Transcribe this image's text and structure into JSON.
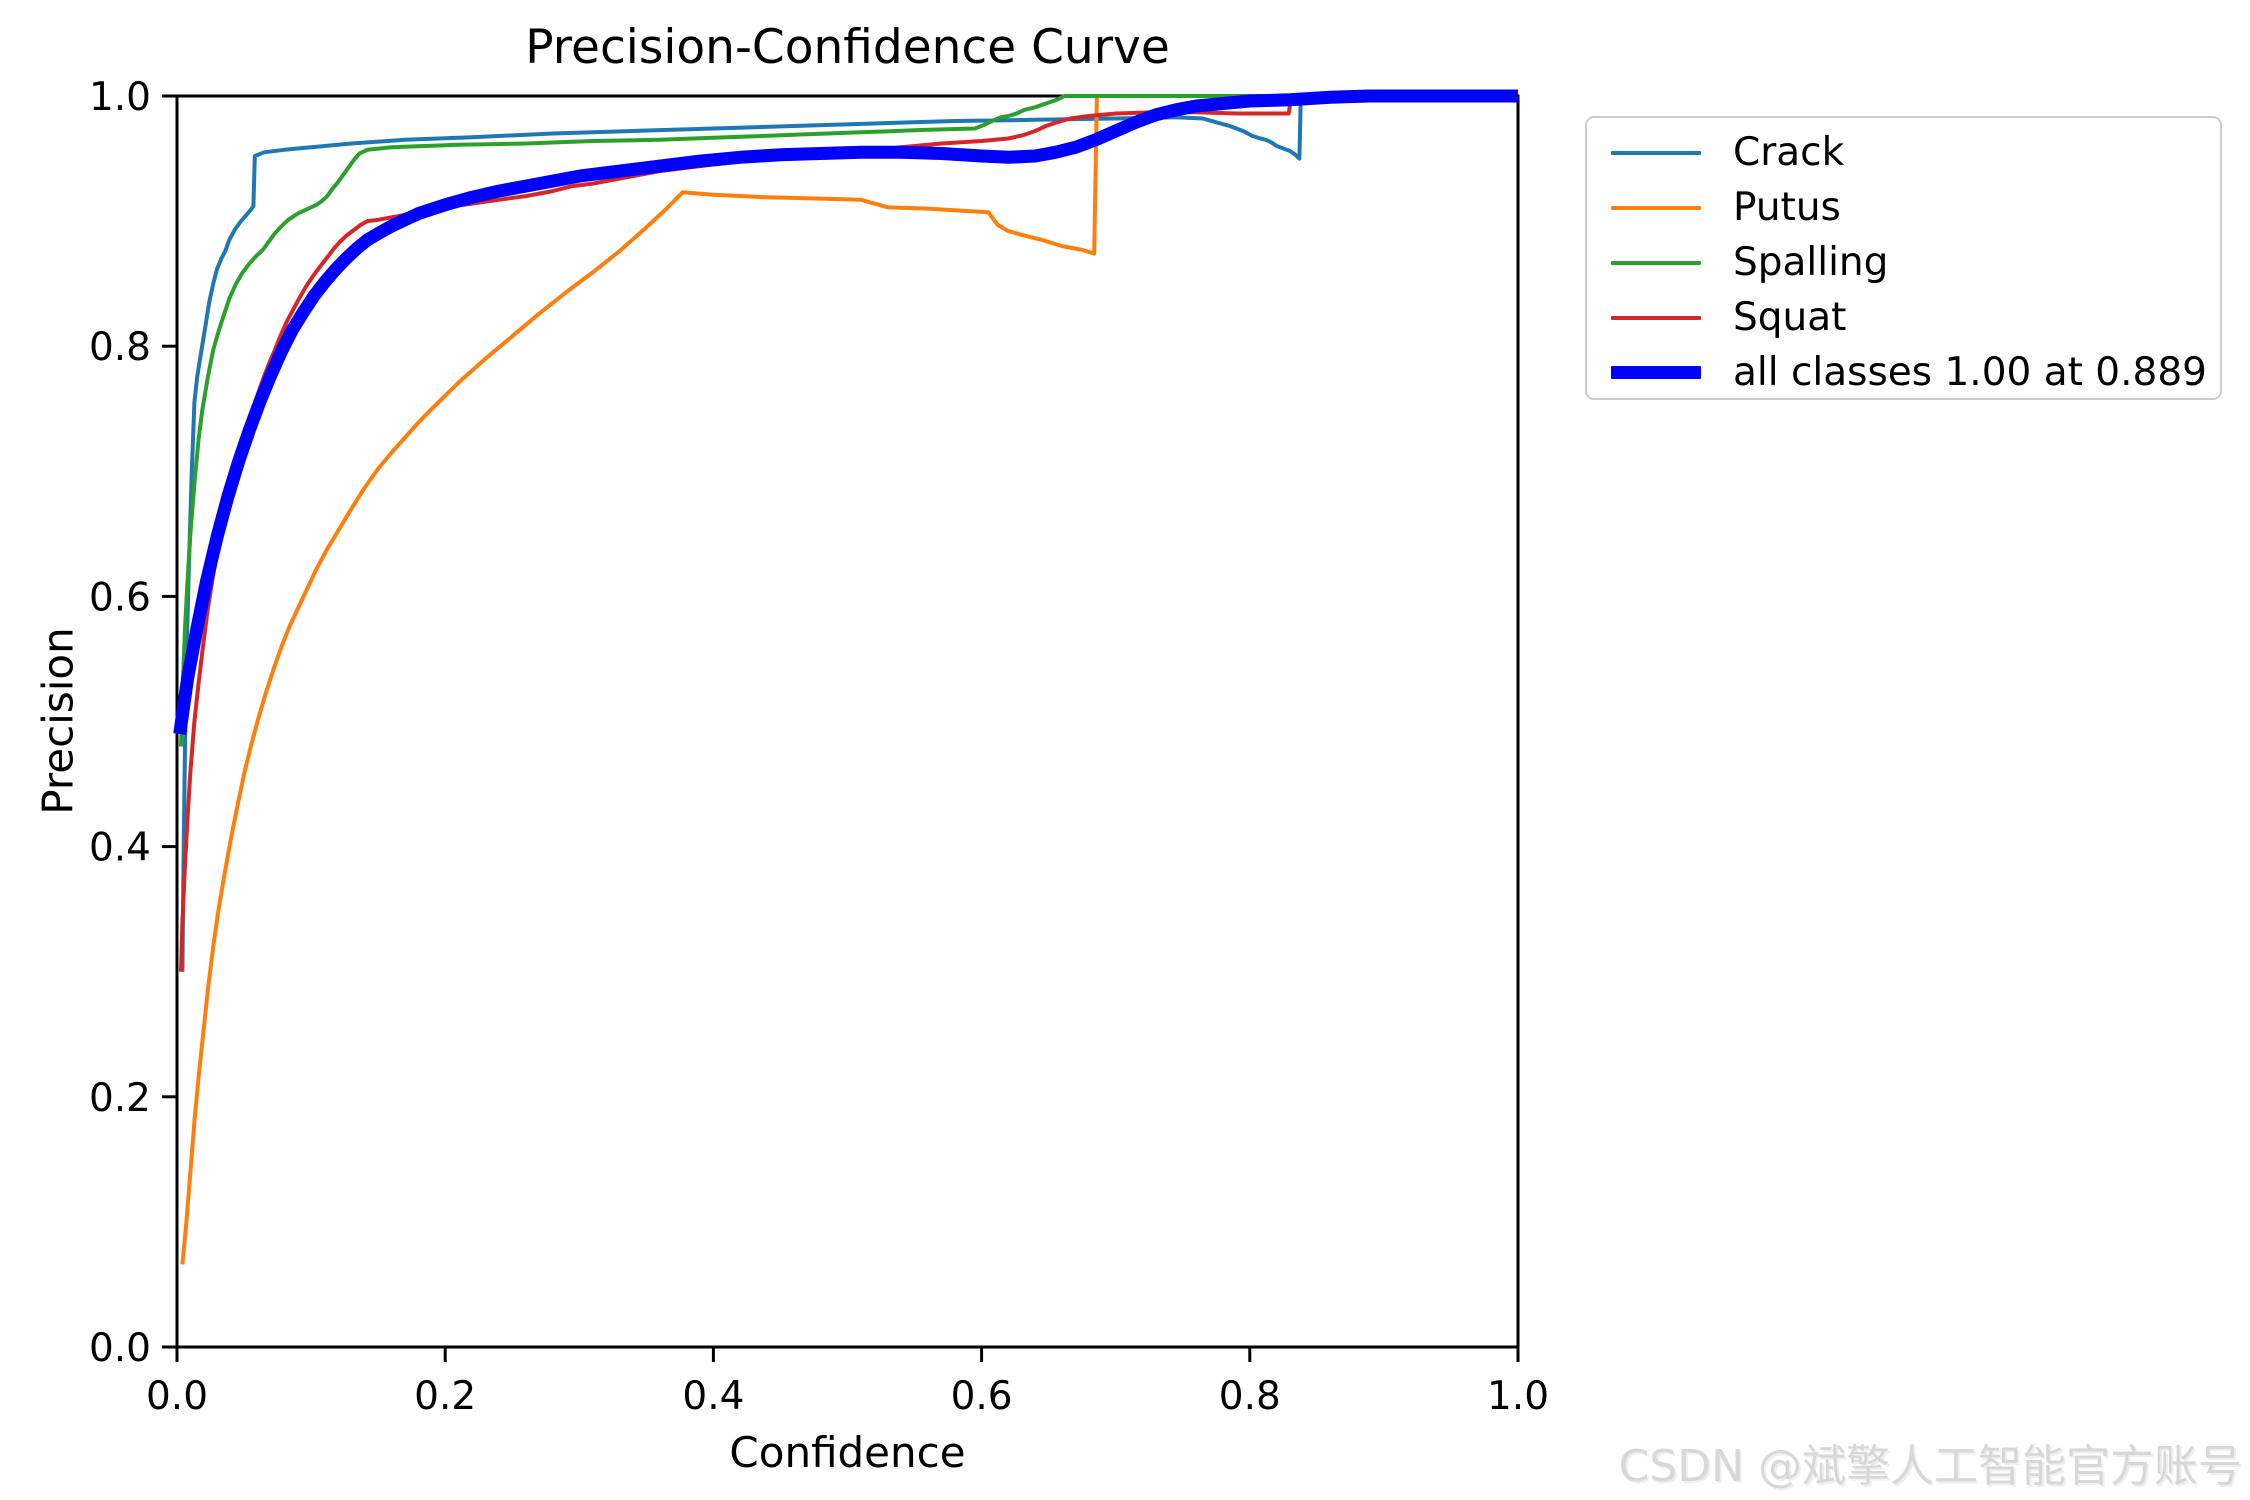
{
  "watermark_text": "CSDN @斌擎人工智能官方账号",
  "chart_data": {
    "type": "line",
    "title": "Precision-Confidence Curve",
    "xlabel": "Confidence",
    "ylabel": "Precision",
    "xlim": [
      0.0,
      1.0
    ],
    "ylim": [
      0.0,
      1.0
    ],
    "grid": false,
    "legend_position": "upper right, outside plot",
    "x_axis": {
      "tick_labels": [
        "0.0",
        "0.2",
        "0.4",
        "0.6",
        "0.8",
        "1.0"
      ],
      "tick_values": [
        0.0,
        0.2,
        0.4,
        0.6,
        0.8,
        1.0
      ]
    },
    "y_axis": {
      "tick_labels": [
        "0.0",
        "0.2",
        "0.4",
        "0.6",
        "0.8",
        "1.0"
      ],
      "tick_values": [
        0.0,
        0.2,
        0.4,
        0.6,
        0.8,
        1.0
      ]
    },
    "series": [
      {
        "id": "crack",
        "label": "Crack",
        "color": "#1f77b4",
        "line_width": 4,
        "points": [
          [
            0.004,
            0.3
          ],
          [
            0.005,
            0.4
          ],
          [
            0.006,
            0.48
          ],
          [
            0.007,
            0.55
          ],
          [
            0.009,
            0.63
          ],
          [
            0.011,
            0.7
          ],
          [
            0.013,
            0.755
          ],
          [
            0.015,
            0.775
          ],
          [
            0.018,
            0.795
          ],
          [
            0.021,
            0.815
          ],
          [
            0.024,
            0.835
          ],
          [
            0.027,
            0.85
          ],
          [
            0.03,
            0.862
          ],
          [
            0.033,
            0.87
          ],
          [
            0.036,
            0.876
          ],
          [
            0.039,
            0.885
          ],
          [
            0.043,
            0.893
          ],
          [
            0.047,
            0.899
          ],
          [
            0.051,
            0.904
          ],
          [
            0.055,
            0.909
          ],
          [
            0.057,
            0.912
          ],
          [
            0.058,
            0.952
          ],
          [
            0.065,
            0.955
          ],
          [
            0.08,
            0.957
          ],
          [
            0.1,
            0.959
          ],
          [
            0.13,
            0.962
          ],
          [
            0.17,
            0.965
          ],
          [
            0.22,
            0.967
          ],
          [
            0.28,
            0.97
          ],
          [
            0.34,
            0.972
          ],
          [
            0.4,
            0.974
          ],
          [
            0.46,
            0.976
          ],
          [
            0.52,
            0.978
          ],
          [
            0.58,
            0.98
          ],
          [
            0.64,
            0.981
          ],
          [
            0.7,
            0.982
          ],
          [
            0.745,
            0.983
          ],
          [
            0.765,
            0.982
          ],
          [
            0.775,
            0.979
          ],
          [
            0.785,
            0.976
          ],
          [
            0.795,
            0.972
          ],
          [
            0.802,
            0.968
          ],
          [
            0.808,
            0.966
          ],
          [
            0.812,
            0.965
          ],
          [
            0.816,
            0.963
          ],
          [
            0.82,
            0.96
          ],
          [
            0.825,
            0.958
          ],
          [
            0.83,
            0.956
          ],
          [
            0.834,
            0.953
          ],
          [
            0.837,
            0.95
          ],
          [
            0.838,
            1.0
          ],
          [
            1.0,
            1.0
          ]
        ]
      },
      {
        "id": "putus",
        "label": "Putus",
        "color": "#ff7f0e",
        "line_width": 4,
        "points": [
          [
            0.004,
            0.066
          ],
          [
            0.007,
            0.1
          ],
          [
            0.01,
            0.14
          ],
          [
            0.013,
            0.18
          ],
          [
            0.016,
            0.215
          ],
          [
            0.019,
            0.245
          ],
          [
            0.023,
            0.285
          ],
          [
            0.027,
            0.32
          ],
          [
            0.031,
            0.35
          ],
          [
            0.035,
            0.375
          ],
          [
            0.04,
            0.405
          ],
          [
            0.045,
            0.432
          ],
          [
            0.05,
            0.458
          ],
          [
            0.055,
            0.48
          ],
          [
            0.06,
            0.5
          ],
          [
            0.066,
            0.522
          ],
          [
            0.072,
            0.542
          ],
          [
            0.078,
            0.56
          ],
          [
            0.084,
            0.576
          ],
          [
            0.09,
            0.59
          ],
          [
            0.097,
            0.606
          ],
          [
            0.104,
            0.622
          ],
          [
            0.112,
            0.638
          ],
          [
            0.12,
            0.652
          ],
          [
            0.13,
            0.67
          ],
          [
            0.14,
            0.687
          ],
          [
            0.15,
            0.702
          ],
          [
            0.16,
            0.715
          ],
          [
            0.17,
            0.727
          ],
          [
            0.18,
            0.739
          ],
          [
            0.19,
            0.75
          ],
          [
            0.21,
            0.771
          ],
          [
            0.23,
            0.79
          ],
          [
            0.25,
            0.808
          ],
          [
            0.27,
            0.826
          ],
          [
            0.29,
            0.843
          ],
          [
            0.31,
            0.859
          ],
          [
            0.33,
            0.876
          ],
          [
            0.35,
            0.895
          ],
          [
            0.365,
            0.91
          ],
          [
            0.377,
            0.923
          ],
          [
            0.4,
            0.921
          ],
          [
            0.44,
            0.919
          ],
          [
            0.48,
            0.918
          ],
          [
            0.51,
            0.917
          ],
          [
            0.52,
            0.914
          ],
          [
            0.53,
            0.911
          ],
          [
            0.56,
            0.91
          ],
          [
            0.59,
            0.908
          ],
          [
            0.605,
            0.907
          ],
          [
            0.612,
            0.897
          ],
          [
            0.62,
            0.892
          ],
          [
            0.63,
            0.889
          ],
          [
            0.645,
            0.885
          ],
          [
            0.66,
            0.88
          ],
          [
            0.675,
            0.877
          ],
          [
            0.684,
            0.874
          ],
          [
            0.686,
            1.0
          ],
          [
            1.0,
            1.0
          ]
        ]
      },
      {
        "id": "spalling",
        "label": "Spalling",
        "color": "#2ca02c",
        "line_width": 4,
        "points": [
          [
            0.003,
            0.48
          ],
          [
            0.004,
            0.52
          ],
          [
            0.006,
            0.575
          ],
          [
            0.008,
            0.615
          ],
          [
            0.01,
            0.65
          ],
          [
            0.013,
            0.69
          ],
          [
            0.016,
            0.725
          ],
          [
            0.019,
            0.75
          ],
          [
            0.023,
            0.775
          ],
          [
            0.027,
            0.797
          ],
          [
            0.031,
            0.812
          ],
          [
            0.035,
            0.825
          ],
          [
            0.039,
            0.838
          ],
          [
            0.044,
            0.85
          ],
          [
            0.049,
            0.859
          ],
          [
            0.054,
            0.866
          ],
          [
            0.059,
            0.872
          ],
          [
            0.064,
            0.877
          ],
          [
            0.068,
            0.883
          ],
          [
            0.072,
            0.889
          ],
          [
            0.077,
            0.895
          ],
          [
            0.083,
            0.901
          ],
          [
            0.09,
            0.906
          ],
          [
            0.098,
            0.91
          ],
          [
            0.104,
            0.913
          ],
          [
            0.108,
            0.916
          ],
          [
            0.112,
            0.92
          ],
          [
            0.116,
            0.926
          ],
          [
            0.12,
            0.931
          ],
          [
            0.124,
            0.937
          ],
          [
            0.128,
            0.943
          ],
          [
            0.132,
            0.949
          ],
          [
            0.136,
            0.954
          ],
          [
            0.142,
            0.957
          ],
          [
            0.16,
            0.959
          ],
          [
            0.21,
            0.961
          ],
          [
            0.26,
            0.962
          ],
          [
            0.31,
            0.964
          ],
          [
            0.36,
            0.965
          ],
          [
            0.41,
            0.967
          ],
          [
            0.46,
            0.969
          ],
          [
            0.51,
            0.971
          ],
          [
            0.56,
            0.973
          ],
          [
            0.595,
            0.974
          ],
          [
            0.602,
            0.977
          ],
          [
            0.608,
            0.98
          ],
          [
            0.614,
            0.983
          ],
          [
            0.62,
            0.984
          ],
          [
            0.626,
            0.986
          ],
          [
            0.632,
            0.989
          ],
          [
            0.64,
            0.991
          ],
          [
            0.648,
            0.994
          ],
          [
            0.656,
            0.997
          ],
          [
            0.662,
            1.0
          ],
          [
            1.0,
            1.0
          ]
        ]
      },
      {
        "id": "squat",
        "label": "Squat",
        "color": "#d62728",
        "line_width": 4,
        "points": [
          [
            0.003,
            0.3
          ],
          [
            0.004,
            0.34
          ],
          [
            0.006,
            0.385
          ],
          [
            0.008,
            0.425
          ],
          [
            0.01,
            0.46
          ],
          [
            0.013,
            0.5
          ],
          [
            0.016,
            0.53
          ],
          [
            0.019,
            0.557
          ],
          [
            0.023,
            0.59
          ],
          [
            0.027,
            0.617
          ],
          [
            0.031,
            0.642
          ],
          [
            0.035,
            0.665
          ],
          [
            0.039,
            0.685
          ],
          [
            0.043,
            0.702
          ],
          [
            0.047,
            0.717
          ],
          [
            0.052,
            0.733
          ],
          [
            0.057,
            0.75
          ],
          [
            0.061,
            0.764
          ],
          [
            0.065,
            0.776
          ],
          [
            0.069,
            0.787
          ],
          [
            0.073,
            0.797
          ],
          [
            0.077,
            0.808
          ],
          [
            0.082,
            0.82
          ],
          [
            0.087,
            0.83
          ],
          [
            0.092,
            0.84
          ],
          [
            0.097,
            0.849
          ],
          [
            0.102,
            0.857
          ],
          [
            0.107,
            0.864
          ],
          [
            0.112,
            0.871
          ],
          [
            0.117,
            0.878
          ],
          [
            0.122,
            0.884
          ],
          [
            0.127,
            0.889
          ],
          [
            0.132,
            0.893
          ],
          [
            0.137,
            0.897
          ],
          [
            0.142,
            0.9
          ],
          [
            0.15,
            0.901
          ],
          [
            0.16,
            0.903
          ],
          [
            0.18,
            0.907
          ],
          [
            0.2,
            0.911
          ],
          [
            0.22,
            0.914
          ],
          [
            0.24,
            0.917
          ],
          [
            0.26,
            0.92
          ],
          [
            0.28,
            0.924
          ],
          [
            0.295,
            0.928
          ],
          [
            0.31,
            0.93
          ],
          [
            0.33,
            0.934
          ],
          [
            0.36,
            0.94
          ],
          [
            0.39,
            0.944
          ],
          [
            0.42,
            0.948
          ],
          [
            0.45,
            0.951
          ],
          [
            0.48,
            0.953
          ],
          [
            0.51,
            0.956
          ],
          [
            0.54,
            0.959
          ],
          [
            0.57,
            0.962
          ],
          [
            0.6,
            0.964
          ],
          [
            0.62,
            0.966
          ],
          [
            0.632,
            0.969
          ],
          [
            0.64,
            0.972
          ],
          [
            0.648,
            0.976
          ],
          [
            0.656,
            0.979
          ],
          [
            0.666,
            0.982
          ],
          [
            0.68,
            0.984
          ],
          [
            0.7,
            0.986
          ],
          [
            0.73,
            0.987
          ],
          [
            0.76,
            0.987
          ],
          [
            0.79,
            0.986
          ],
          [
            0.82,
            0.986
          ],
          [
            0.829,
            0.986
          ],
          [
            0.831,
            1.0
          ],
          [
            1.0,
            1.0
          ]
        ]
      },
      {
        "id": "all-classes",
        "label": "all classes 1.00 at 0.889",
        "color": "#0000ff",
        "line_width": 13,
        "points": [
          [
            0.002,
            0.49
          ],
          [
            0.008,
            0.535
          ],
          [
            0.015,
            0.575
          ],
          [
            0.022,
            0.612
          ],
          [
            0.03,
            0.648
          ],
          [
            0.038,
            0.68
          ],
          [
            0.046,
            0.708
          ],
          [
            0.054,
            0.733
          ],
          [
            0.062,
            0.756
          ],
          [
            0.07,
            0.777
          ],
          [
            0.078,
            0.796
          ],
          [
            0.086,
            0.813
          ],
          [
            0.094,
            0.827
          ],
          [
            0.102,
            0.84
          ],
          [
            0.11,
            0.851
          ],
          [
            0.118,
            0.861
          ],
          [
            0.126,
            0.87
          ],
          [
            0.134,
            0.878
          ],
          [
            0.142,
            0.885
          ],
          [
            0.15,
            0.89
          ],
          [
            0.16,
            0.896
          ],
          [
            0.17,
            0.901
          ],
          [
            0.18,
            0.906
          ],
          [
            0.2,
            0.913
          ],
          [
            0.22,
            0.919
          ],
          [
            0.24,
            0.924
          ],
          [
            0.26,
            0.928
          ],
          [
            0.28,
            0.932
          ],
          [
            0.3,
            0.936
          ],
          [
            0.33,
            0.94
          ],
          [
            0.36,
            0.944
          ],
          [
            0.39,
            0.948
          ],
          [
            0.42,
            0.951
          ],
          [
            0.45,
            0.953
          ],
          [
            0.48,
            0.954
          ],
          [
            0.51,
            0.955
          ],
          [
            0.54,
            0.955
          ],
          [
            0.57,
            0.954
          ],
          [
            0.6,
            0.952
          ],
          [
            0.62,
            0.951
          ],
          [
            0.64,
            0.952
          ],
          [
            0.655,
            0.955
          ],
          [
            0.67,
            0.959
          ],
          [
            0.685,
            0.965
          ],
          [
            0.7,
            0.972
          ],
          [
            0.715,
            0.979
          ],
          [
            0.73,
            0.985
          ],
          [
            0.745,
            0.989
          ],
          [
            0.76,
            0.992
          ],
          [
            0.78,
            0.994
          ],
          [
            0.8,
            0.996
          ],
          [
            0.83,
            0.997
          ],
          [
            0.86,
            0.999
          ],
          [
            0.889,
            1.0
          ],
          [
            1.0,
            1.0
          ]
        ]
      }
    ]
  }
}
